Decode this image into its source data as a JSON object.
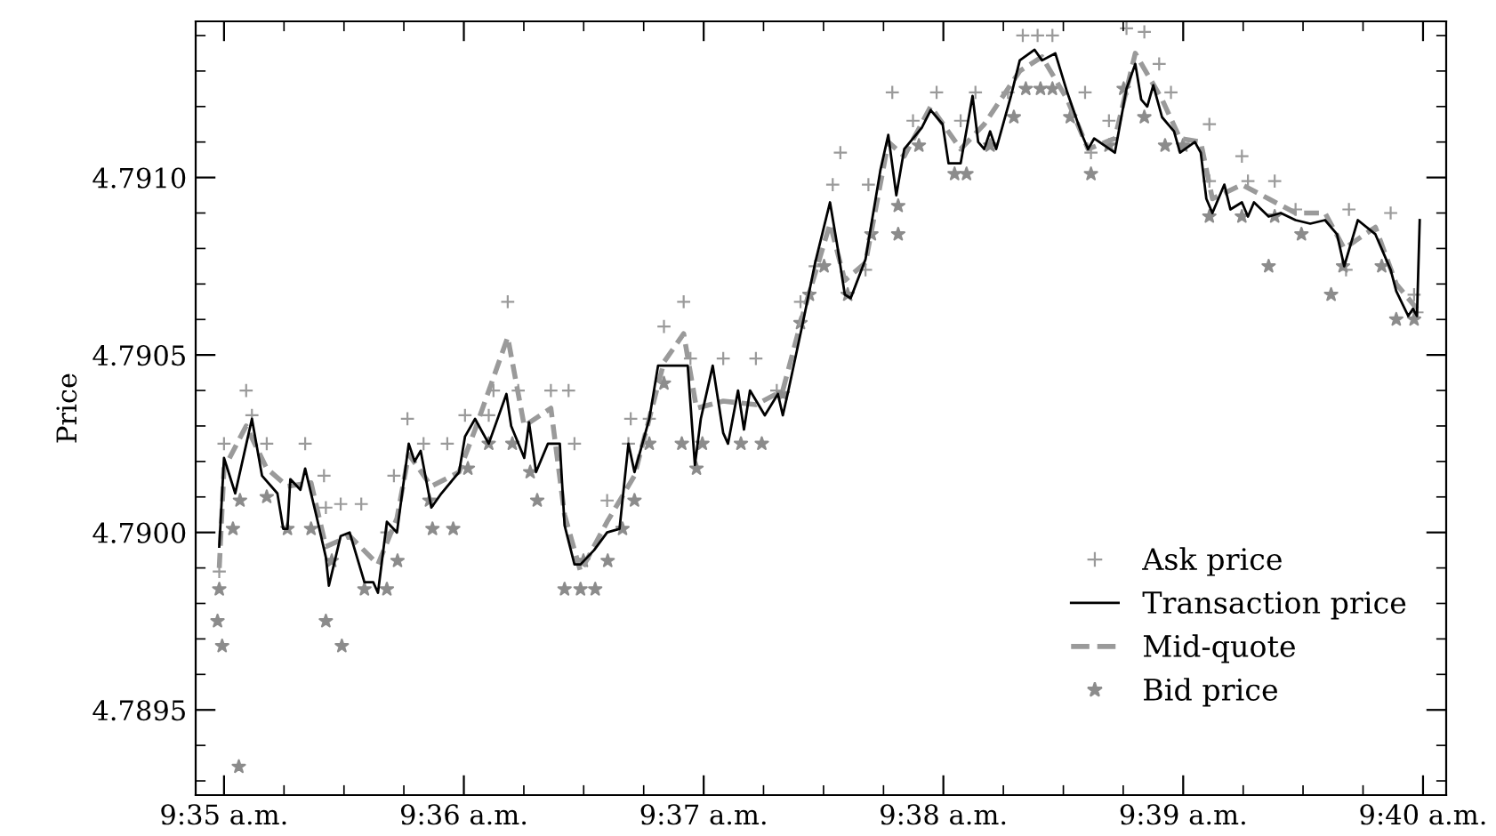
{
  "chart_data": {
    "type": "line",
    "ylabel": "Price",
    "legend": "bottom right",
    "grid": false,
    "xlim": [
      9.58136,
      9.66828
    ],
    "ylim": [
      4.78926,
      4.79144
    ],
    "xticks": [
      {
        "value": 9.58333,
        "label": "9:35 a.m."
      },
      {
        "value": 9.5875,
        "label": null
      },
      {
        "value": 9.59167,
        "label": null
      },
      {
        "value": 9.59583,
        "label": null
      },
      {
        "value": 9.6,
        "label": "9:36 a.m."
      },
      {
        "value": 9.60417,
        "label": null
      },
      {
        "value": 9.60833,
        "label": null
      },
      {
        "value": 9.6125,
        "label": null
      },
      {
        "value": 9.61667,
        "label": "9:37 a.m."
      },
      {
        "value": 9.62083,
        "label": null
      },
      {
        "value": 9.625,
        "label": null
      },
      {
        "value": 9.62917,
        "label": null
      },
      {
        "value": 9.63333,
        "label": "9:38 a.m."
      },
      {
        "value": 9.6375,
        "label": null
      },
      {
        "value": 9.64167,
        "label": null
      },
      {
        "value": 9.64583,
        "label": null
      },
      {
        "value": 9.65,
        "label": "9:39 a.m."
      },
      {
        "value": 9.65417,
        "label": null
      },
      {
        "value": 9.65833,
        "label": null
      },
      {
        "value": 9.6625,
        "label": null
      },
      {
        "value": 9.66667,
        "label": "9:40 a.m."
      }
    ],
    "yticks": [
      {
        "value": 4.7893,
        "label": null
      },
      {
        "value": 4.7894,
        "label": null
      },
      {
        "value": 4.7895,
        "label": "4.7895"
      },
      {
        "value": 4.7896,
        "label": null
      },
      {
        "value": 4.7897,
        "label": null
      },
      {
        "value": 4.7898,
        "label": null
      },
      {
        "value": 4.7899,
        "label": null
      },
      {
        "value": 4.79,
        "label": "4.7900"
      },
      {
        "value": 4.7901,
        "label": null
      },
      {
        "value": 4.7902,
        "label": null
      },
      {
        "value": 4.7903,
        "label": null
      },
      {
        "value": 4.7904,
        "label": null
      },
      {
        "value": 4.7905,
        "label": "4.7905"
      },
      {
        "value": 4.7906,
        "label": null
      },
      {
        "value": 4.7907,
        "label": null
      },
      {
        "value": 4.7908,
        "label": null
      },
      {
        "value": 4.7909,
        "label": null
      },
      {
        "value": 4.791,
        "label": "4.7910"
      },
      {
        "value": 4.7911,
        "label": null
      },
      {
        "value": 4.7912,
        "label": null
      },
      {
        "value": 4.7913,
        "label": null
      },
      {
        "value": 4.7914,
        "label": null
      }
    ],
    "series": [
      {
        "name": "Ask price",
        "type": "scatter",
        "marker": "cross",
        "color": "#9a9a9a",
        "x": [
          9.583,
          9.58333,
          9.58487,
          9.58527,
          9.5863,
          9.58897,
          9.59028,
          9.59041,
          9.59144,
          9.59287,
          9.59465,
          9.59514,
          9.59608,
          9.5972,
          9.59885,
          9.60008,
          9.60173,
          9.60206,
          9.60305,
          9.60378,
          9.60605,
          9.60728,
          9.60769,
          9.60996,
          9.61144,
          9.6116,
          9.61289,
          9.61391,
          9.61528,
          9.61575,
          9.61803,
          9.6203,
          9.62175,
          9.6234,
          9.62442,
          9.62564,
          9.62617,
          9.62792,
          9.62812,
          9.62978,
          9.63122,
          9.63286,
          9.63453,
          9.63556,
          9.63782,
          9.63885,
          9.63988,
          9.64091,
          9.64318,
          9.64359,
          9.64484,
          9.64606,
          9.6473,
          9.64833,
          9.64915,
          9.65182,
          9.65182,
          9.65408,
          9.6545,
          9.65636,
          9.65781,
          9.66132,
          9.66152,
          9.66442,
          9.66605,
          9.66625
        ],
        "values": [
          4.78989,
          4.79025,
          4.7904,
          4.79033,
          4.79025,
          4.79025,
          4.79016,
          4.79007,
          4.79008,
          4.79008,
          4.79,
          4.79016,
          4.79032,
          4.79025,
          4.79025,
          4.79033,
          4.79033,
          4.7904,
          4.79065,
          4.7904,
          4.7904,
          4.7904,
          4.79025,
          4.79009,
          4.79025,
          4.79032,
          4.79032,
          4.79058,
          4.79065,
          4.79049,
          4.79049,
          4.79049,
          4.7904,
          4.79065,
          4.79075,
          4.79098,
          4.79107,
          4.79074,
          4.79098,
          4.79124,
          4.79116,
          4.79124,
          4.79116,
          4.79124,
          4.79124,
          4.7914,
          4.7914,
          4.7914,
          4.79124,
          4.79107,
          4.79116,
          4.79142,
          4.79141,
          4.79132,
          4.79124,
          4.79115,
          4.79099,
          4.79106,
          4.79099,
          4.79099,
          4.79091,
          4.79074,
          4.79091,
          4.7909,
          4.79067,
          4.79062
        ]
      },
      {
        "name": "Transaction price",
        "type": "line",
        "color": "#000000",
        "line_style": "solid",
        "x": [
          9.583,
          9.58333,
          9.58411,
          9.58527,
          9.58597,
          9.58704,
          9.58745,
          9.58774,
          9.58794,
          9.58864,
          9.58897,
          9.58979,
          9.59041,
          9.59062,
          9.59144,
          9.59206,
          9.59309,
          9.5937,
          9.59403,
          9.59465,
          9.59535,
          9.59617,
          9.59658,
          9.597,
          9.59774,
          9.59844,
          9.59967,
          9.60008,
          9.60078,
          9.60173,
          9.60296,
          9.60329,
          9.6042,
          9.60453,
          9.60502,
          9.60584,
          9.60667,
          9.607,
          9.60769,
          9.60811,
          9.60905,
          9.60996,
          9.61082,
          9.61144,
          9.61186,
          9.61289,
          9.6135,
          9.61556,
          9.61606,
          9.61647,
          9.6173,
          9.61803,
          9.61836,
          9.61906,
          9.61947,
          9.61989,
          9.62092,
          9.62183,
          9.62217,
          9.62256,
          9.62361,
          9.62442,
          9.62545,
          9.62595,
          9.62648,
          9.62689,
          9.62792,
          9.62895,
          9.6295,
          9.63006,
          9.63061,
          9.63183,
          9.63245,
          9.63328,
          9.63369,
          9.63453,
          9.63536,
          9.63575,
          9.63617,
          9.63658,
          9.637,
          9.63803,
          9.63864,
          9.63967,
          9.64019,
          9.64111,
          9.64194,
          9.64297,
          9.64339,
          9.64381,
          9.64525,
          9.64606,
          9.64667,
          9.64708,
          9.6475,
          9.64792,
          9.64853,
          9.64936,
          9.64978,
          9.65081,
          9.65122,
          9.65161,
          9.65203,
          9.65286,
          9.65328,
          9.65408,
          9.6545,
          9.65492,
          9.65594,
          9.65678,
          9.65781,
          9.65883,
          9.65986,
          9.66069,
          9.66119,
          9.66214,
          9.66336,
          9.66442,
          9.66481,
          9.66564,
          9.66597,
          9.66625,
          9.66644
        ],
        "values": [
          4.78996,
          4.79021,
          4.79011,
          4.79032,
          4.79016,
          4.79011,
          4.79001,
          4.79001,
          4.79015,
          4.79012,
          4.79018,
          4.79004,
          4.78993,
          4.78985,
          4.78999,
          4.79,
          4.78986,
          4.78986,
          4.78983,
          4.79003,
          4.79,
          4.79025,
          4.7902,
          4.79023,
          4.79007,
          4.79011,
          4.79017,
          4.79027,
          4.79032,
          4.79025,
          4.79039,
          4.7903,
          4.79021,
          4.79031,
          4.79017,
          4.79025,
          4.79025,
          4.79002,
          4.78991,
          4.78991,
          4.78995,
          4.79,
          4.79001,
          4.79025,
          4.79017,
          4.79032,
          4.79047,
          4.79047,
          4.79019,
          4.79032,
          4.79047,
          4.79028,
          4.79025,
          4.7904,
          4.79029,
          4.7904,
          4.79033,
          4.79039,
          4.79033,
          4.7904,
          4.7906,
          4.79076,
          4.79093,
          4.79081,
          4.79067,
          4.79066,
          4.79077,
          4.79102,
          4.79112,
          4.79095,
          4.79108,
          4.79114,
          4.79119,
          4.79115,
          4.79104,
          4.79104,
          4.79123,
          4.7911,
          4.79108,
          4.79113,
          4.79108,
          4.79123,
          4.79133,
          4.79136,
          4.79133,
          4.79135,
          4.79124,
          4.79112,
          4.79108,
          4.79111,
          4.79107,
          4.79125,
          4.79132,
          4.79122,
          4.7912,
          4.79126,
          4.79117,
          4.79113,
          4.79107,
          4.7911,
          4.79107,
          4.79094,
          4.7909,
          4.79098,
          4.79091,
          4.79093,
          4.79089,
          4.79093,
          4.79089,
          4.7909,
          4.79088,
          4.79087,
          4.79088,
          4.79084,
          4.79075,
          4.79088,
          4.79084,
          4.79074,
          4.79068,
          4.79061,
          4.79063,
          4.79061,
          4.79088
        ]
      },
      {
        "name": "Mid-quote",
        "type": "line",
        "color": "#9a9a9a",
        "line_style": "dashed",
        "x": [
          9.583,
          9.58333,
          9.58487,
          9.5863,
          9.58774,
          9.58938,
          9.59041,
          9.59206,
          9.59403,
          9.59535,
          9.59617,
          9.59774,
          9.59967,
          9.60078,
          9.60305,
          9.6042,
          9.60605,
          9.607,
          9.60811,
          9.60996,
          9.61186,
          9.61391,
          9.61528,
          9.61617,
          9.61803,
          9.6203,
          9.62217,
          9.62361,
          9.62545,
          9.62648,
          9.62792,
          9.6295,
          9.63061,
          9.63245,
          9.63453,
          9.63617,
          9.63864,
          9.64019,
          9.64194,
          9.64339,
          9.64525,
          9.64667,
          9.64853,
          9.64978,
          9.65122,
          9.65203,
          9.65408,
          9.65594,
          9.65781,
          9.65986,
          9.66119,
          9.66336,
          9.66481,
          9.66625
        ],
        "values": [
          4.7899,
          4.79018,
          4.7903,
          4.79018,
          4.79013,
          4.79014,
          4.78996,
          4.78999,
          4.78991,
          4.79004,
          4.79022,
          4.79013,
          4.79017,
          4.79029,
          4.79055,
          4.7903,
          4.79035,
          4.79005,
          4.78989,
          4.79003,
          4.79016,
          4.79048,
          4.79056,
          4.79035,
          4.79037,
          4.79036,
          4.7904,
          4.79062,
          4.79087,
          4.79071,
          4.79076,
          4.7911,
          4.79106,
          4.7912,
          4.79108,
          4.79115,
          4.7913,
          4.79134,
          4.79122,
          4.79108,
          4.79111,
          4.79135,
          4.79122,
          4.79111,
          4.7911,
          4.79094,
          4.79098,
          4.79094,
          4.7909,
          4.7909,
          4.7908,
          4.79086,
          4.7907,
          4.79063
        ]
      },
      {
        "name": "Bid price",
        "type": "scatter",
        "marker": "star",
        "color": "#8c8c8c",
        "x": [
          9.58288,
          9.5832,
          9.583,
          9.58395,
          9.58444,
          9.58436,
          9.5863,
          9.58774,
          9.58938,
          9.59041,
          9.59082,
          9.59152,
          9.59309,
          9.59465,
          9.59539,
          9.59761,
          9.59782,
          9.59926,
          9.60028,
          9.60173,
          9.60337,
          9.60461,
          9.6051,
          9.607,
          9.60811,
          9.60831,
          9.60913,
          9.61,
          9.61103,
          9.61186,
          9.61289,
          9.61391,
          9.61515,
          9.61617,
          9.61658,
          9.61926,
          9.62071,
          9.62217,
          9.6234,
          9.62402,
          9.62504,
          9.62668,
          9.62833,
          9.63019,
          9.63019,
          9.63163,
          9.63411,
          9.63494,
          9.63658,
          9.63823,
          9.63906,
          9.64008,
          9.64091,
          9.64215,
          9.64359,
          9.64484,
          9.64586,
          9.6473,
          9.64874,
          9.64998,
          9.65182,
          9.65408,
          9.65594,
          9.65636,
          9.65822,
          9.66028,
          9.66111,
          9.6638,
          9.66481,
          9.66605
        ],
        "values": [
          4.78975,
          4.78968,
          4.78984,
          4.79001,
          4.79009,
          4.78934,
          4.7901,
          4.79001,
          4.79001,
          4.78975,
          4.78992,
          4.78968,
          4.78984,
          4.78984,
          4.78992,
          4.79009,
          4.79001,
          4.79001,
          4.79018,
          4.79025,
          4.79025,
          4.79017,
          4.79009,
          4.78984,
          4.78984,
          4.78992,
          4.78984,
          4.78992,
          4.79001,
          4.79009,
          4.79025,
          4.79042,
          4.79025,
          4.79018,
          4.79025,
          4.79025,
          4.79025,
          4.79039,
          4.79059,
          4.79067,
          4.79075,
          4.79067,
          4.79084,
          4.79092,
          4.79084,
          4.79109,
          4.79101,
          4.79101,
          4.79109,
          4.79117,
          4.79125,
          4.79125,
          4.79125,
          4.79117,
          4.79101,
          4.79109,
          4.79125,
          4.79117,
          4.79109,
          4.79109,
          4.79089,
          4.79089,
          4.79075,
          4.79089,
          4.79084,
          4.79067,
          4.79075,
          4.79075,
          4.7906,
          4.7906
        ]
      }
    ]
  }
}
